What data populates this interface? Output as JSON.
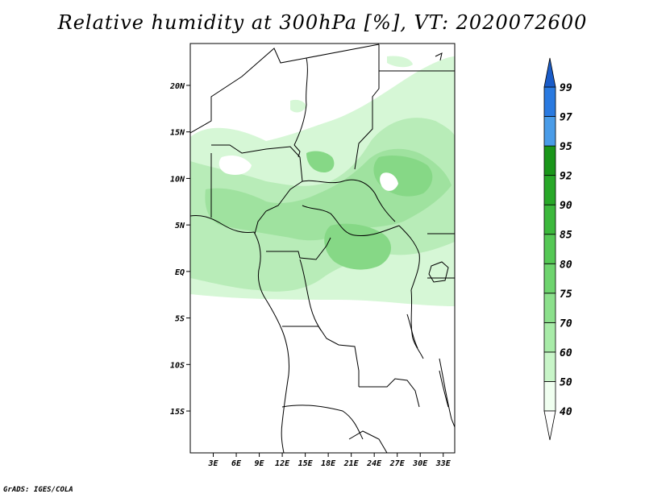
{
  "title": "Relative humidity at 300hPa [%], VT: 2020072600",
  "credit": "GrADS: IGES/COLA",
  "map": {
    "lat_ticks": [
      "20N",
      "15N",
      "10N",
      "5N",
      "EQ",
      "5S",
      "10S",
      "15S"
    ],
    "lon_ticks": [
      "3E",
      "6E",
      "9E",
      "12E",
      "15E",
      "18E",
      "21E",
      "24E",
      "27E",
      "30E",
      "33E"
    ],
    "lat_range": [
      -19.5,
      24.5
    ],
    "lon_range": [
      0.0,
      34.5
    ],
    "background": "#ffffff",
    "border_color": "#000000"
  },
  "colorbar": {
    "levels": [
      "99",
      "97",
      "95",
      "92",
      "90",
      "85",
      "80",
      "75",
      "70",
      "60",
      "50",
      "40"
    ],
    "colors": [
      "#f0fff0",
      "#c8f5c8",
      "#a8eba8",
      "#8ce08c",
      "#6ed46e",
      "#55c855",
      "#3cb83c",
      "#28a828",
      "#1a961a",
      "#4a9ce8",
      "#2a7ae0",
      "#1a5cc8"
    ]
  }
}
